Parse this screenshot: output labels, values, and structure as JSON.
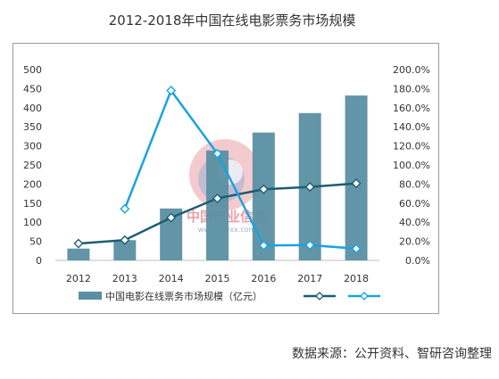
{
  "chart_data": {
    "type": "bar",
    "title": "2012-2018年中国在线电影票务市场规模",
    "categories": [
      "2012",
      "2013",
      "2014",
      "2015",
      "2016",
      "2017",
      "2018"
    ],
    "series": [
      {
        "name": "中国电影在线票务市场规模（亿元）",
        "type": "bar",
        "axis": "left",
        "color": "#5b8fa3",
        "values": [
          31,
          53,
          136,
          288,
          335,
          386,
          432
        ]
      },
      {
        "type": "line",
        "axis": "right",
        "color": "#1d5d72",
        "marker": "diamond",
        "values": [
          17.7,
          21.3,
          44.8,
          65,
          74.5,
          77,
          80.7
        ]
      },
      {
        "type": "line",
        "axis": "right",
        "color": "#1aa3df",
        "marker": "diamond",
        "values": [
          null,
          54,
          178,
          111.9,
          15.7,
          16,
          12.3
        ]
      }
    ],
    "yleft": {
      "ylim": [
        0,
        500
      ],
      "ticks": [
        "0",
        "50",
        "100",
        "150",
        "200",
        "250",
        "300",
        "350",
        "400",
        "450",
        "500"
      ]
    },
    "yright": {
      "ylim": [
        0,
        200
      ],
      "ticks": [
        "0.0%",
        "20.0%",
        "40.0%",
        "60.0%",
        "80.0%",
        "100.0%",
        "120.0%",
        "140.0%",
        "160.0%",
        "180.0%",
        "200.0%"
      ]
    },
    "grid": false,
    "legend_position": "bottom"
  },
  "watermark": {
    "text": "中国产业信息",
    "url": "www.chyxx.com"
  },
  "source_note": "数据来源：公开资料、智研咨询整理"
}
